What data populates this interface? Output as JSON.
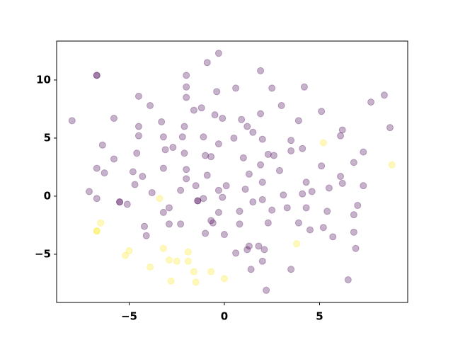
{
  "chart_data": {
    "type": "scatter",
    "xlim": [
      -8.81,
      9.63
    ],
    "ylim": [
      -9.15,
      13.35
    ],
    "xticks": [
      {
        "value": -5,
        "label": "−5"
      },
      0,
      5
    ],
    "yticks": [
      {
        "value": -5,
        "label": "−5"
      },
      0,
      5,
      10
    ],
    "alpha": 0.3,
    "series": [
      {
        "color": "#440154",
        "x": [
          -6.7,
          -8.0,
          -0.3,
          -0.9,
          1.9,
          -0.4,
          0.6,
          -4.5,
          -3.9,
          -2.0,
          -2.0,
          2.5,
          4.2,
          7.7,
          8.4,
          8.7,
          -3.3,
          -4.5,
          -5.8,
          -2.0,
          -1.6,
          -1.2,
          -0.5,
          -0.1,
          0.9,
          1.5,
          1.9,
          3.0,
          3.9,
          5.1,
          6.2,
          6.1,
          -6.4,
          -5.8,
          -4.6,
          -4.5,
          -3.2,
          -2.7,
          -2.2,
          -2.1,
          -3.1,
          -3.2,
          -2.1,
          -2.0,
          -1.1,
          -1.0,
          -0.7,
          -0.3,
          0.5,
          1.2,
          1.0,
          2.0,
          2.3,
          1.9,
          2.6,
          2.9,
          3.5,
          4.1,
          4.3,
          5.1,
          7.3,
          -6.7,
          -6.3,
          -4.8,
          -4.3,
          -4.7,
          -7.1,
          -6.7,
          -5.5,
          -5.1,
          -3.8,
          -2.9,
          -3.2,
          -2.3,
          -2.0,
          -1.5,
          -1.4,
          -1.1,
          -0.9,
          -0.3,
          -0.1,
          -0.3,
          -0.7,
          -1.0,
          0.0,
          0.1,
          0.8,
          1.1,
          1.3,
          2.0,
          1.5,
          2.0,
          2.5,
          2.3,
          3.1,
          3.3,
          4.1,
          4.3,
          4.6,
          3.9,
          4.5,
          5.2,
          5.4,
          5.5,
          5.7,
          6.1,
          6.2,
          6.8,
          7.3,
          7.0,
          6.8,
          6.8,
          6.9,
          -2.9,
          -2.3,
          -4.2,
          -4.1,
          -0.6,
          0.6,
          1.3,
          1.2,
          1.8,
          2.1,
          1.4,
          2.0,
          2.2,
          3.5,
          6.5,
          0.8,
          3.5,
          -5.5,
          -1.4,
          -6.7
        ],
        "values": [
          10.4,
          6.5,
          12.3,
          11.5,
          10.8,
          9.0,
          9.3,
          8.6,
          7.8,
          9.4,
          10.4,
          9.3,
          9.4,
          8.1,
          8.7,
          5.9,
          6.4,
          6.0,
          6.7,
          8.5,
          7.4,
          7.6,
          7.0,
          6.7,
          6.6,
          5.5,
          7.1,
          7.8,
          6.5,
          7.3,
          5.7,
          5.2,
          4.4,
          3.2,
          3.7,
          5.2,
          5.1,
          4.2,
          5.1,
          6.0,
          4.0,
          2.4,
          3.7,
          2.3,
          5.1,
          3.5,
          3.4,
          4.5,
          5.0,
          6.0,
          3.3,
          4.9,
          3.6,
          2.7,
          3.5,
          2.2,
          4.8,
          4.1,
          1.2,
          2.6,
          3.8,
          2.4,
          2.0,
          2.1,
          1.7,
          1.0,
          0.4,
          -0.2,
          -0.5,
          -0.7,
          0.3,
          -1.0,
          -1.4,
          0.5,
          1.5,
          0.9,
          -0.4,
          -0.2,
          1.8,
          0.5,
          -0.1,
          -1.4,
          -2.1,
          -3.2,
          -3.3,
          0.9,
          -1.3,
          0.6,
          1.9,
          1.2,
          -0.5,
          -0.3,
          -1.2,
          -2.3,
          0.1,
          -1.0,
          0.2,
          -1.0,
          0.4,
          -2.3,
          -2.9,
          -2.7,
          -1.3,
          0.7,
          -3.5,
          1.7,
          1.1,
          2.9,
          0.9,
          -0.8,
          -1.6,
          -3.1,
          -4.5,
          -2.4,
          -2.4,
          -2.6,
          -3.4,
          -2.3,
          -4.9,
          -4.3,
          -4.6,
          -4.3,
          -4.6,
          -6.3,
          -5.6,
          -8.1,
          -6.3,
          -7.2,
          -2.4,
          3.9,
          -0.5,
          -0.4,
          10.4
        ]
      },
      {
        "color": "#fde725",
        "x": [
          5.2,
          8.8,
          -3.4,
          -6.5,
          -6.7,
          -6.7,
          -5.0,
          -5.2,
          -3.9,
          -3.2,
          -2.9,
          -2.5,
          -1.9,
          -1.9,
          -1.6,
          -1.5,
          -2.8,
          -0.7,
          0.0,
          3.8
        ],
        "values": [
          4.6,
          2.7,
          -0.2,
          -2.3,
          -3.0,
          -3.0,
          -4.7,
          -5.1,
          -6.1,
          -4.5,
          -5.5,
          -5.6,
          -4.8,
          -5.6,
          -6.5,
          -7.4,
          -7.3,
          -6.5,
          -7.1,
          -4.1
        ]
      }
    ]
  }
}
